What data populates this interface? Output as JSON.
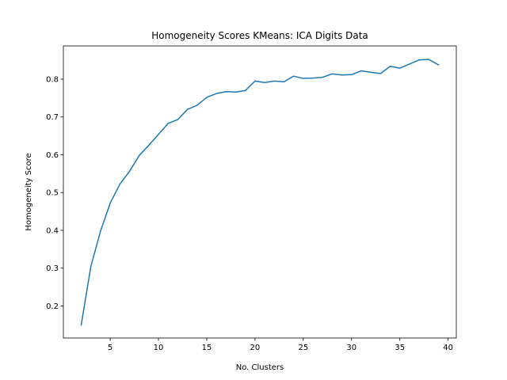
{
  "chart_data": {
    "type": "line",
    "title": "Homogeneity Scores KMeans: ICA Digits Data",
    "xlabel": "No. Clusters",
    "ylabel": "Homogeneity Score",
    "xlim": [
      0.15,
      40.85
    ],
    "ylim": [
      0.115,
      0.888
    ],
    "xticks": [
      5,
      10,
      15,
      20,
      25,
      30,
      35,
      40
    ],
    "yticks": [
      0.2,
      0.3,
      0.4,
      0.5,
      0.6,
      0.7,
      0.8
    ],
    "xtick_labels": [
      "5",
      "10",
      "15",
      "20",
      "25",
      "30",
      "35",
      "40"
    ],
    "ytick_labels": [
      "0.2",
      "0.3",
      "0.4",
      "0.5",
      "0.6",
      "0.7",
      "0.8"
    ],
    "grid": false,
    "series": [
      {
        "color": "#1f77b4",
        "x": [
          2,
          3,
          4,
          5,
          6,
          7,
          8,
          9,
          10,
          11,
          12,
          13,
          14,
          15,
          16,
          17,
          18,
          19,
          20,
          21,
          22,
          23,
          24,
          25,
          26,
          27,
          28,
          29,
          30,
          31,
          32,
          33,
          34,
          35,
          36,
          37,
          38,
          39
        ],
        "y": [
          0.15,
          0.305,
          0.398,
          0.472,
          0.522,
          0.556,
          0.598,
          0.625,
          0.654,
          0.683,
          0.693,
          0.72,
          0.731,
          0.752,
          0.762,
          0.767,
          0.766,
          0.77,
          0.795,
          0.791,
          0.795,
          0.793,
          0.808,
          0.802,
          0.803,
          0.805,
          0.814,
          0.811,
          0.812,
          0.822,
          0.818,
          0.815,
          0.834,
          0.829,
          0.84,
          0.851,
          0.852,
          0.838
        ]
      }
    ]
  }
}
